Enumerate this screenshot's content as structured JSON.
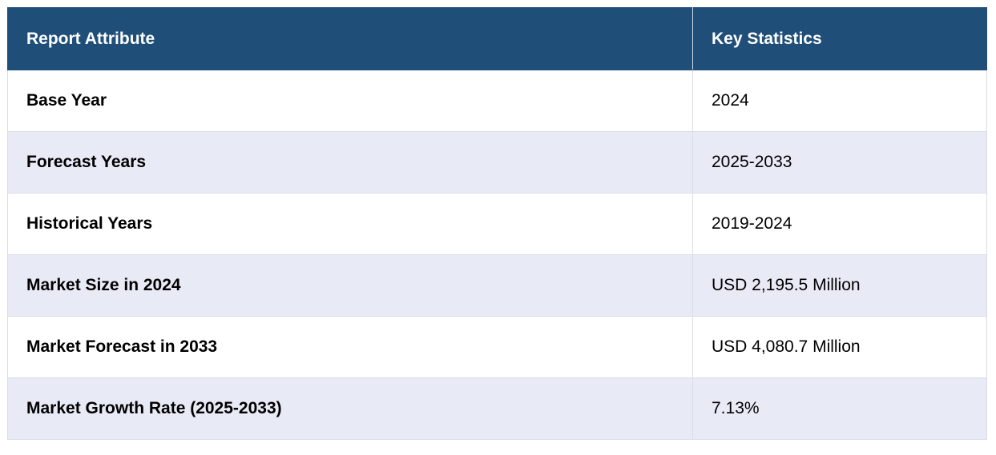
{
  "table": {
    "headers": [
      "Report Attribute",
      "Key Statistics"
    ],
    "rows": [
      [
        "Base Year",
        "2024"
      ],
      [
        "Forecast Years",
        "2025-2033"
      ],
      [
        "Historical Years",
        "2019-2024"
      ],
      [
        "Market Size in 2024",
        "USD 2,195.5 Million"
      ],
      [
        "Market Forecast in 2033",
        "USD 4,080.7 Million"
      ],
      [
        "Market Growth Rate (2025-2033)",
        "7.13%"
      ]
    ]
  },
  "colors": {
    "header_bg": "#1f4e79",
    "header_text": "#ffffff",
    "row_alt_bg": "#e8eaf6",
    "row_bg": "#ffffff",
    "border": "#d9dde5"
  }
}
